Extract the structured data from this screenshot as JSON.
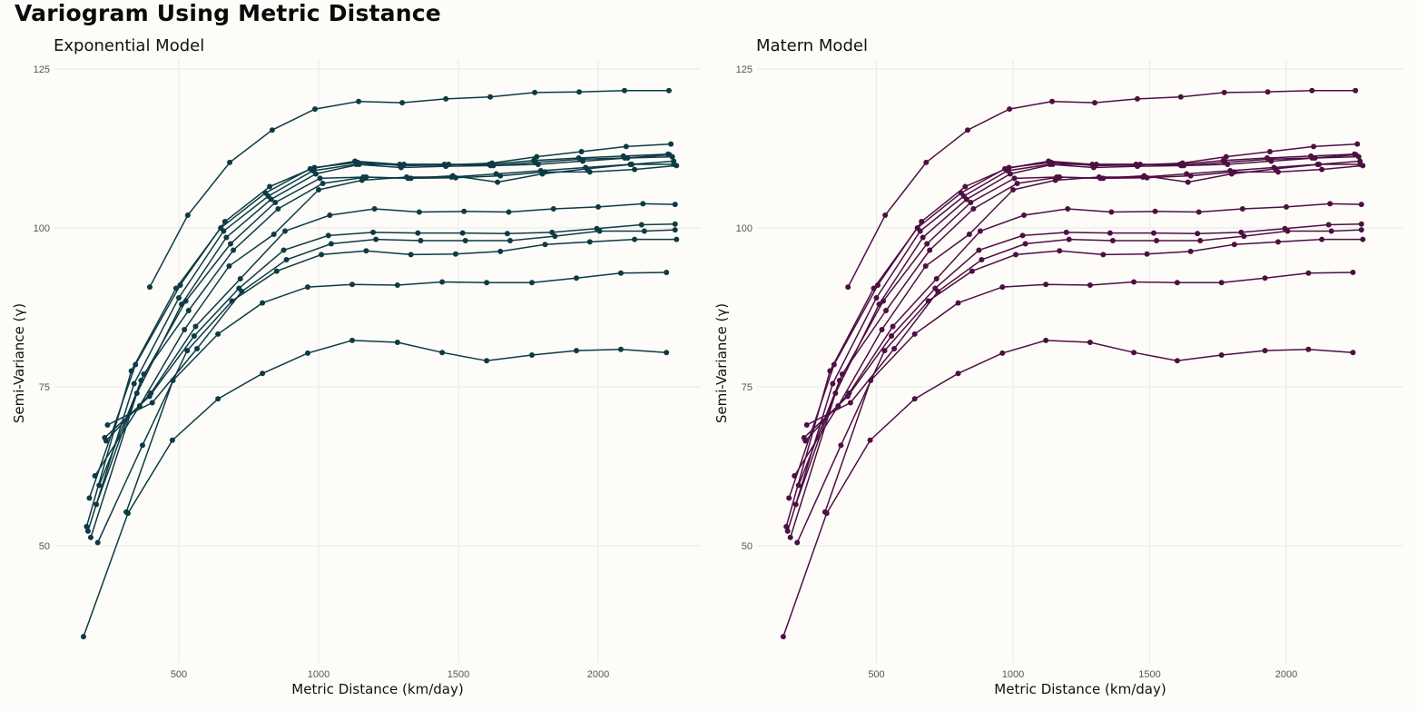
{
  "title": "Variogram Using Metric Distance",
  "chart_data": [
    {
      "type": "line",
      "subtitle": "Exponential Model",
      "color": "#0d3b44",
      "xlabel": "Metric Distance (km/day)",
      "ylabel": "Semi-Variance (γ)",
      "xlim": [
        0,
        2350
      ],
      "ylim": [
        32,
        127
      ],
      "xticks": [
        500,
        1000,
        1500,
        2000
      ],
      "yticks": [
        50,
        75,
        100,
        125
      ],
      "grid": true,
      "legend": "none"
    },
    {
      "type": "line",
      "subtitle": "Matern Model",
      "color": "#4e0f43",
      "xlabel": "Metric Distance (km/day)",
      "ylabel": "Semi-Variance (γ)",
      "xlim": [
        0,
        2400
      ],
      "ylim": [
        32,
        127
      ],
      "xticks": [
        500,
        1000,
        1500,
        2000
      ],
      "yticks": [
        50,
        75,
        100,
        125
      ],
      "grid": true,
      "legend": "none"
    }
  ],
  "series": [
    {
      "name": "s1",
      "x": [
        396,
        532,
        682,
        834,
        987,
        1143,
        1299,
        1455,
        1614,
        1773,
        1932,
        2094,
        2253
      ],
      "y": [
        90.7,
        102.0,
        110.3,
        115.4,
        118.7,
        119.9,
        119.7,
        120.3,
        120.6,
        121.3,
        121.4,
        121.6,
        121.6
      ]
    },
    {
      "name": "s2",
      "x": [
        170,
        330,
        490,
        650,
        810,
        970,
        1130,
        1290,
        1450,
        1610,
        1770,
        1930,
        2090,
        2250
      ],
      "y": [
        53.0,
        77.5,
        90.5,
        100.0,
        105.5,
        109.3,
        110.5,
        110.0,
        110.0,
        110.0,
        110.6,
        111.0,
        111.3,
        111.6
      ]
    },
    {
      "name": "s3",
      "x": [
        180,
        345,
        505,
        665,
        825,
        985,
        1140,
        1300,
        1460,
        1620,
        1780,
        1940,
        2100,
        2260
      ],
      "y": [
        57.5,
        78.5,
        91.0,
        101.0,
        106.5,
        109.5,
        110.3,
        109.8,
        109.9,
        110.2,
        111.2,
        112.0,
        112.8,
        113.2
      ]
    },
    {
      "name": "s4",
      "x": [
        175,
        340,
        500,
        660,
        820,
        980,
        1135,
        1295,
        1455,
        1615,
        1775,
        1935,
        2095,
        2255
      ],
      "y": [
        52.3,
        75.5,
        89.0,
        99.5,
        105.0,
        109.0,
        110.0,
        109.5,
        109.7,
        109.8,
        110.3,
        110.8,
        111.0,
        111.5
      ]
    },
    {
      "name": "s5",
      "x": [
        185,
        350,
        510,
        670,
        830,
        990,
        1145,
        1305,
        1465,
        1625,
        1785,
        1945,
        2105,
        2265
      ],
      "y": [
        51.3,
        74.0,
        88.0,
        98.5,
        104.5,
        108.5,
        110.0,
        110.0,
        110.0,
        109.8,
        110.0,
        110.5,
        111.0,
        111.2
      ]
    },
    {
      "name": "s6",
      "x": [
        205,
        365,
        525,
        685,
        845,
        1005,
        1160,
        1320,
        1480,
        1640,
        1800,
        1960,
        2120,
        2270
      ],
      "y": [
        56.5,
        76.0,
        88.5,
        97.5,
        104.0,
        107.8,
        108.0,
        107.8,
        108.2,
        107.2,
        108.5,
        109.3,
        110.0,
        110.5
      ]
    },
    {
      "name": "s7",
      "x": [
        215,
        375,
        535,
        695,
        855,
        1015,
        1170,
        1330,
        1490,
        1650,
        1810,
        1970,
        2130,
        2280
      ],
      "y": [
        59.5,
        77.0,
        87.0,
        96.5,
        103.0,
        107.0,
        108.0,
        107.8,
        107.9,
        108.2,
        108.8,
        108.8,
        109.2,
        109.8
      ]
    },
    {
      "name": "s8",
      "x": [
        200,
        360,
        520,
        680,
        840,
        1000,
        1155,
        1315,
        1475,
        1635,
        1795,
        1955,
        2115,
        2270
      ],
      "y": [
        61.0,
        72.0,
        84.0,
        94.0,
        99.0,
        106.0,
        107.5,
        108.0,
        108.0,
        108.5,
        109.0,
        109.5,
        110.0,
        110.0
      ]
    },
    {
      "name": "s9",
      "x": [
        240,
        400,
        560,
        720,
        880,
        1040,
        1200,
        1360,
        1520,
        1680,
        1840,
        2000,
        2160,
        2275
      ],
      "y": [
        66.5,
        74.0,
        84.5,
        92.0,
        99.5,
        102.0,
        103.0,
        102.5,
        102.6,
        102.5,
        103.0,
        103.3,
        103.8,
        103.7
      ]
    },
    {
      "name": "s10",
      "x": [
        235,
        395,
        555,
        715,
        875,
        1035,
        1195,
        1355,
        1515,
        1675,
        1835,
        1995,
        2155,
        2275
      ],
      "y": [
        67.0,
        73.5,
        83.0,
        90.5,
        96.5,
        98.8,
        99.3,
        99.2,
        99.2,
        99.1,
        99.3,
        99.9,
        100.5,
        100.6
      ]
    },
    {
      "name": "s11",
      "x": [
        245,
        405,
        565,
        725,
        885,
        1045,
        1205,
        1365,
        1525,
        1685,
        1845,
        2005,
        2165,
        2275
      ],
      "y": [
        69.0,
        72.5,
        81.0,
        90.0,
        95.0,
        97.5,
        98.2,
        98.0,
        98.0,
        98.0,
        98.7,
        99.5,
        99.5,
        99.7
      ]
    },
    {
      "name": "s12",
      "x": [
        210,
        370,
        530,
        690,
        850,
        1010,
        1170,
        1330,
        1490,
        1650,
        1810,
        1970,
        2130,
        2280
      ],
      "y": [
        50.5,
        65.8,
        80.7,
        88.5,
        93.2,
        95.8,
        96.4,
        95.8,
        95.9,
        96.3,
        97.4,
        97.8,
        98.2,
        98.2
      ]
    },
    {
      "name": "s13",
      "x": [
        312,
        479,
        640,
        799,
        961,
        1120,
        1282,
        1442,
        1601,
        1763,
        1922,
        2081,
        2244
      ],
      "y": [
        55.3,
        76.0,
        83.3,
        88.2,
        90.7,
        91.1,
        91.0,
        91.5,
        91.4,
        91.4,
        92.1,
        92.9,
        93.0
      ]
    },
    {
      "name": "s14",
      "x": [
        159,
        318,
        477,
        640,
        799,
        961,
        1120,
        1282,
        1442,
        1601,
        1763,
        1922,
        2081,
        2244
      ],
      "y": [
        35.7,
        55.1,
        66.6,
        73.1,
        77.1,
        80.3,
        82.3,
        82.0,
        80.4,
        79.1,
        80.0,
        80.7,
        80.9,
        80.4
      ]
    }
  ]
}
